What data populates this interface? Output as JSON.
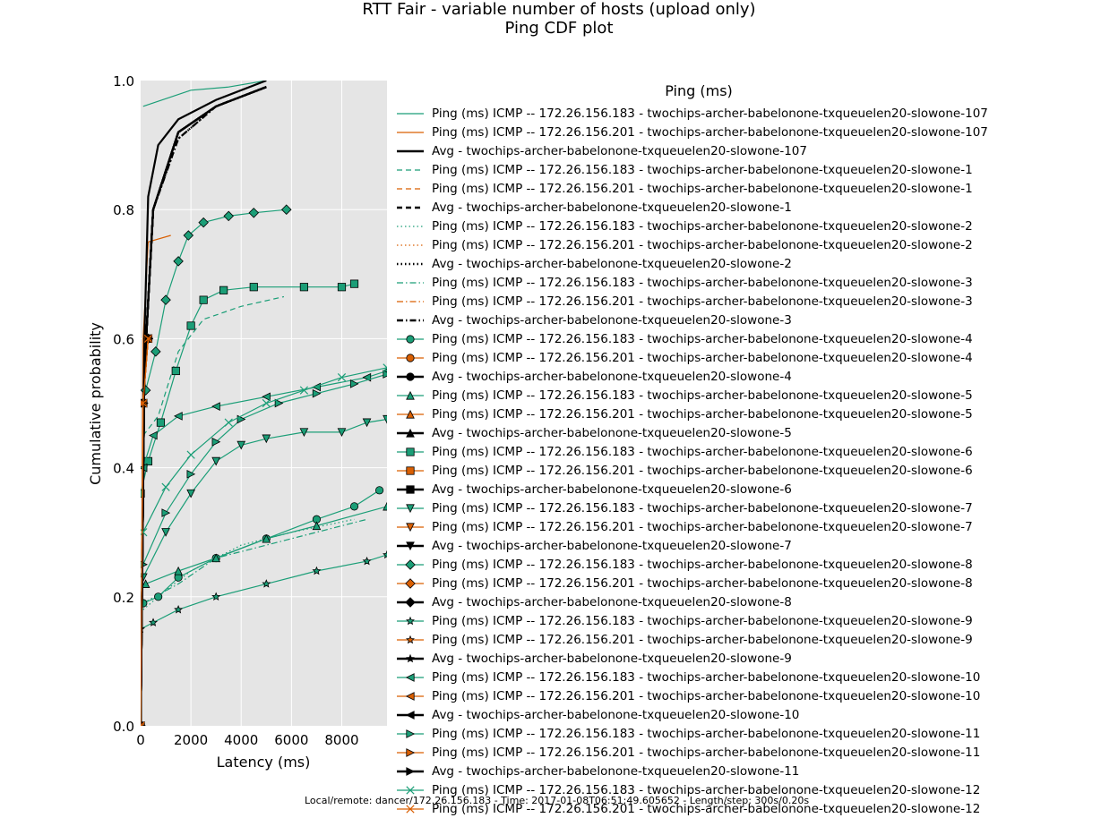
{
  "title": "RTT Fair - variable number of hosts (upload only)",
  "subtitle": "Ping CDF plot",
  "footer_text": "Local/remote: dancer/172.26.156.183 - Time: 2017-01-08T06:51:49.605652 - Length/step: 300s/0.20s",
  "colors": {
    "plot_bg": "#e5e5e5",
    "grid": "#ffffff",
    "series_183": "#1b9e77",
    "series_201": "#d95f02",
    "series_avg": "#000000"
  },
  "chart_data": {
    "type": "line",
    "title": "RTT Fair - variable number of hosts (upload only)",
    "subtitle": "Ping CDF plot",
    "xlabel": "Latency (ms)",
    "ylabel": "Cumulative probability",
    "xlim": [
      0,
      9800
    ],
    "ylim": [
      0,
      1.0
    ],
    "xticks": [
      0,
      2000,
      4000,
      6000,
      8000
    ],
    "xtick_labels": [
      "0",
      "2000",
      "4000",
      "6000",
      "8000"
    ],
    "yticks": [
      0.0,
      0.2,
      0.4,
      0.6,
      0.8,
      1.0
    ],
    "ytick_labels": [
      "0.0",
      "0.2",
      "0.4",
      "0.6",
      "0.8",
      "1.0"
    ],
    "grid": true,
    "legend_title": "Ping (ms)",
    "legend_position": "right",
    "series": [
      {
        "name": "Ping (ms) ICMP -- 172.26.156.183 - twochips-archer-babelonone-txqueuelen20-slowone-107",
        "color": "#1b9e77",
        "style": "solid",
        "marker": "none",
        "x": [
          100,
          2000,
          3500,
          5000
        ],
        "y": [
          0.96,
          0.985,
          0.99,
          1.0
        ]
      },
      {
        "name": "Ping (ms) ICMP -- 172.26.156.201 - twochips-archer-babelonone-txqueuelen20-slowone-107",
        "color": "#d95f02",
        "style": "solid",
        "marker": "none",
        "x": [
          0,
          100,
          300,
          1200
        ],
        "y": [
          0.0,
          0.6,
          0.75,
          0.76
        ]
      },
      {
        "name": "Avg - twochips-archer-babelonone-txqueuelen20-slowone-107",
        "color": "#000000",
        "style": "solid",
        "marker": "none",
        "x": [
          0,
          150,
          300,
          700,
          1500,
          3000,
          5000
        ],
        "y": [
          0.0,
          0.6,
          0.82,
          0.9,
          0.94,
          0.97,
          1.0
        ]
      },
      {
        "name": "Ping (ms) ICMP -- 172.26.156.183 - twochips-archer-babelonone-txqueuelen20-slowone-1",
        "color": "#1b9e77",
        "style": "dashed",
        "marker": "none",
        "x": [
          100,
          700,
          1500,
          2500,
          4000,
          5700
        ],
        "y": [
          0.45,
          0.48,
          0.58,
          0.63,
          0.65,
          0.665
        ]
      },
      {
        "name": "Ping (ms) ICMP -- 172.26.156.201 - twochips-archer-babelonone-txqueuelen20-slowone-1",
        "color": "#d95f02",
        "style": "dashed",
        "marker": "none",
        "x": [
          0,
          100,
          300
        ],
        "y": [
          0.0,
          0.5,
          0.6
        ]
      },
      {
        "name": "Avg - twochips-archer-babelonone-txqueuelen20-slowone-1",
        "color": "#000000",
        "style": "dashed",
        "marker": "none",
        "x": [
          0,
          150,
          500,
          1500,
          3000,
          5000
        ],
        "y": [
          0.0,
          0.55,
          0.8,
          0.92,
          0.96,
          0.99
        ]
      },
      {
        "name": "Ping (ms) ICMP -- 172.26.156.183 - twochips-archer-babelonone-txqueuelen20-slowone-2",
        "color": "#1b9e77",
        "style": "dotted",
        "marker": "none",
        "x": [
          100,
          1000,
          2000,
          4000,
          6000,
          8500
        ],
        "y": [
          0.18,
          0.21,
          0.24,
          0.28,
          0.3,
          0.32
        ]
      },
      {
        "name": "Ping (ms) ICMP -- 172.26.156.201 - twochips-archer-babelonone-txqueuelen20-slowone-2",
        "color": "#d95f02",
        "style": "dotted",
        "marker": "none",
        "x": [
          0,
          100,
          300
        ],
        "y": [
          0.0,
          0.5,
          0.6
        ]
      },
      {
        "name": "Avg - twochips-archer-babelonone-txqueuelen20-slowone-2",
        "color": "#000000",
        "style": "dotted",
        "marker": "none",
        "x": [
          0,
          150,
          500,
          1500,
          3000,
          5000
        ],
        "y": [
          0.0,
          0.55,
          0.8,
          0.91,
          0.96,
          0.99
        ]
      },
      {
        "name": "Ping (ms) ICMP -- 172.26.156.183 - twochips-archer-babelonone-txqueuelen20-slowone-3",
        "color": "#1b9e77",
        "style": "dashdot",
        "marker": "none",
        "x": [
          100,
          1500,
          3000,
          5000,
          7000,
          9000
        ],
        "y": [
          0.19,
          0.22,
          0.26,
          0.28,
          0.3,
          0.32
        ]
      },
      {
        "name": "Ping (ms) ICMP -- 172.26.156.201 - twochips-archer-babelonone-txqueuelen20-slowone-3",
        "color": "#d95f02",
        "style": "dashdot",
        "marker": "none",
        "x": [
          0,
          100,
          300
        ],
        "y": [
          0.0,
          0.5,
          0.6
        ]
      },
      {
        "name": "Avg - twochips-archer-babelonone-txqueuelen20-slowone-3",
        "color": "#000000",
        "style": "dashdot",
        "marker": "none",
        "x": [
          0,
          150,
          500,
          1500,
          3000,
          5000
        ],
        "y": [
          0.0,
          0.55,
          0.8,
          0.91,
          0.96,
          0.99
        ]
      },
      {
        "name": "Ping (ms) ICMP -- 172.26.156.183 - twochips-archer-babelonone-txqueuelen20-slowone-4",
        "color": "#1b9e77",
        "style": "solid",
        "marker": "circle",
        "x": [
          100,
          700,
          1500,
          3000,
          5000,
          7000,
          8500,
          9500
        ],
        "y": [
          0.19,
          0.2,
          0.23,
          0.26,
          0.29,
          0.32,
          0.34,
          0.365
        ]
      },
      {
        "name": "Ping (ms) ICMP -- 172.26.156.201 - twochips-archer-babelonone-txqueuelen20-slowone-4",
        "color": "#d95f02",
        "style": "solid",
        "marker": "circle",
        "x": [
          0,
          100,
          300
        ],
        "y": [
          0.0,
          0.5,
          0.6
        ]
      },
      {
        "name": "Avg - twochips-archer-babelonone-txqueuelen20-slowone-4",
        "color": "#000000",
        "style": "solid",
        "marker": "circle",
        "x": [
          0,
          150,
          500,
          1500,
          3000,
          5000
        ],
        "y": [
          0.0,
          0.55,
          0.8,
          0.92,
          0.96,
          0.99
        ]
      },
      {
        "name": "Ping (ms) ICMP -- 172.26.156.183 - twochips-archer-babelonone-txqueuelen20-slowone-5",
        "color": "#1b9e77",
        "style": "solid",
        "marker": "triangle-up",
        "x": [
          200,
          1500,
          3000,
          5000,
          7000,
          9800
        ],
        "y": [
          0.22,
          0.24,
          0.26,
          0.29,
          0.31,
          0.34
        ]
      },
      {
        "name": "Ping (ms) ICMP -- 172.26.156.201 - twochips-archer-babelonone-txqueuelen20-slowone-5",
        "color": "#d95f02",
        "style": "solid",
        "marker": "triangle-up",
        "x": [
          0,
          100,
          300
        ],
        "y": [
          0.0,
          0.5,
          0.6
        ]
      },
      {
        "name": "Avg - twochips-archer-babelonone-txqueuelen20-slowone-5",
        "color": "#000000",
        "style": "solid",
        "marker": "triangle-up",
        "x": [
          0,
          150,
          500,
          1500,
          3000,
          5000
        ],
        "y": [
          0.0,
          0.55,
          0.8,
          0.92,
          0.96,
          0.99
        ]
      },
      {
        "name": "Ping (ms) ICMP -- 172.26.156.183 - twochips-archer-babelonone-txqueuelen20-slowone-6",
        "color": "#1b9e77",
        "style": "solid",
        "marker": "square",
        "x": [
          0,
          300,
          800,
          1400,
          2000,
          2500,
          3300,
          4500,
          6500,
          8000,
          8500
        ],
        "y": [
          0.36,
          0.41,
          0.47,
          0.55,
          0.62,
          0.66,
          0.675,
          0.68,
          0.68,
          0.68,
          0.685
        ]
      },
      {
        "name": "Ping (ms) ICMP -- 172.26.156.201 - twochips-archer-babelonone-txqueuelen20-slowone-6",
        "color": "#d95f02",
        "style": "solid",
        "marker": "square",
        "x": [
          0,
          100,
          300
        ],
        "y": [
          0.0,
          0.5,
          0.6
        ]
      },
      {
        "name": "Avg - twochips-archer-babelonone-txqueuelen20-slowone-6",
        "color": "#000000",
        "style": "solid",
        "marker": "square",
        "x": [
          0,
          150,
          500,
          1500,
          3000,
          5000
        ],
        "y": [
          0.0,
          0.55,
          0.8,
          0.92,
          0.96,
          0.99
        ]
      },
      {
        "name": "Ping (ms) ICMP -- 172.26.156.183 - twochips-archer-babelonone-txqueuelen20-slowone-7",
        "color": "#1b9e77",
        "style": "solid",
        "marker": "triangle-down",
        "x": [
          100,
          1000,
          2000,
          3000,
          4000,
          5000,
          6500,
          8000,
          9000,
          9800
        ],
        "y": [
          0.23,
          0.3,
          0.36,
          0.41,
          0.435,
          0.445,
          0.455,
          0.455,
          0.47,
          0.475
        ]
      },
      {
        "name": "Ping (ms) ICMP -- 172.26.156.201 - twochips-archer-babelonone-txqueuelen20-slowone-7",
        "color": "#d95f02",
        "style": "solid",
        "marker": "triangle-down",
        "x": [
          0,
          100,
          300
        ],
        "y": [
          0.0,
          0.5,
          0.6
        ]
      },
      {
        "name": "Avg - twochips-archer-babelonone-txqueuelen20-slowone-7",
        "color": "#000000",
        "style": "solid",
        "marker": "triangle-down",
        "x": [
          0,
          150,
          500,
          1500,
          3000,
          5000
        ],
        "y": [
          0.0,
          0.55,
          0.8,
          0.92,
          0.96,
          0.99
        ]
      },
      {
        "name": "Ping (ms) ICMP -- 172.26.156.183 - twochips-archer-babelonone-txqueuelen20-slowone-8",
        "color": "#1b9e77",
        "style": "solid",
        "marker": "diamond",
        "x": [
          200,
          600,
          1000,
          1500,
          1900,
          2500,
          3500,
          4500,
          5800
        ],
        "y": [
          0.52,
          0.58,
          0.66,
          0.72,
          0.76,
          0.78,
          0.79,
          0.795,
          0.8
        ]
      },
      {
        "name": "Ping (ms) ICMP -- 172.26.156.201 - twochips-archer-babelonone-txqueuelen20-slowone-8",
        "color": "#d95f02",
        "style": "solid",
        "marker": "diamond",
        "x": [
          0,
          100,
          300
        ],
        "y": [
          0.0,
          0.5,
          0.6
        ]
      },
      {
        "name": "Avg - twochips-archer-babelonone-txqueuelen20-slowone-8",
        "color": "#000000",
        "style": "solid",
        "marker": "diamond",
        "x": [
          0,
          150,
          500,
          1500,
          3000,
          5000
        ],
        "y": [
          0.0,
          0.55,
          0.8,
          0.92,
          0.96,
          0.99
        ]
      },
      {
        "name": "Ping (ms) ICMP -- 172.26.156.183 - twochips-archer-babelonone-txqueuelen20-slowone-9",
        "color": "#1b9e77",
        "style": "solid",
        "marker": "star",
        "x": [
          0,
          500,
          1500,
          3000,
          5000,
          7000,
          9000,
          9800
        ],
        "y": [
          0.15,
          0.16,
          0.18,
          0.2,
          0.22,
          0.24,
          0.255,
          0.265
        ]
      },
      {
        "name": "Ping (ms) ICMP -- 172.26.156.201 - twochips-archer-babelonone-txqueuelen20-slowone-9",
        "color": "#d95f02",
        "style": "solid",
        "marker": "star",
        "x": [
          0,
          100,
          300
        ],
        "y": [
          0.0,
          0.5,
          0.6
        ]
      },
      {
        "name": "Avg - twochips-archer-babelonone-txqueuelen20-slowone-9",
        "color": "#000000",
        "style": "solid",
        "marker": "star",
        "x": [
          0,
          150,
          500,
          1500,
          3000,
          5000
        ],
        "y": [
          0.0,
          0.55,
          0.8,
          0.92,
          0.96,
          0.99
        ]
      },
      {
        "name": "Ping (ms) ICMP -- 172.26.156.183 - twochips-archer-babelonone-txqueuelen20-slowone-10",
        "color": "#1b9e77",
        "style": "solid",
        "marker": "triangle-left",
        "x": [
          100,
          500,
          1500,
          3000,
          5000,
          7000,
          9000,
          9800
        ],
        "y": [
          0.4,
          0.45,
          0.48,
          0.495,
          0.51,
          0.525,
          0.54,
          0.55
        ]
      },
      {
        "name": "Ping (ms) ICMP -- 172.26.156.201 - twochips-archer-babelonone-txqueuelen20-slowone-10",
        "color": "#d95f02",
        "style": "solid",
        "marker": "triangle-left",
        "x": [
          0,
          100,
          300
        ],
        "y": [
          0.0,
          0.5,
          0.6
        ]
      },
      {
        "name": "Avg - twochips-archer-babelonone-txqueuelen20-slowone-10",
        "color": "#000000",
        "style": "solid",
        "marker": "triangle-left",
        "x": [
          0,
          150,
          500,
          1500,
          3000,
          5000
        ],
        "y": [
          0.0,
          0.55,
          0.8,
          0.92,
          0.96,
          0.99
        ]
      },
      {
        "name": "Ping (ms) ICMP -- 172.26.156.183 - twochips-archer-babelonone-txqueuelen20-slowone-11",
        "color": "#1b9e77",
        "style": "solid",
        "marker": "triangle-right",
        "x": [
          100,
          1000,
          2000,
          3000,
          4000,
          5500,
          7000,
          8500,
          9800
        ],
        "y": [
          0.25,
          0.33,
          0.39,
          0.44,
          0.475,
          0.5,
          0.515,
          0.53,
          0.545
        ]
      },
      {
        "name": "Ping (ms) ICMP -- 172.26.156.201 - twochips-archer-babelonone-txqueuelen20-slowone-11",
        "color": "#d95f02",
        "style": "solid",
        "marker": "triangle-right",
        "x": [
          0,
          100,
          300
        ],
        "y": [
          0.0,
          0.5,
          0.6
        ]
      },
      {
        "name": "Avg - twochips-archer-babelonone-txqueuelen20-slowone-11",
        "color": "#000000",
        "style": "solid",
        "marker": "triangle-right",
        "x": [
          0,
          150,
          500,
          1500,
          3000,
          5000
        ],
        "y": [
          0.0,
          0.55,
          0.8,
          0.92,
          0.96,
          0.99
        ]
      },
      {
        "name": "Ping (ms) ICMP -- 172.26.156.183 - twochips-archer-babelonone-txqueuelen20-slowone-12",
        "color": "#1b9e77",
        "style": "solid",
        "marker": "x",
        "x": [
          100,
          1000,
          2000,
          3500,
          5000,
          6500,
          8000,
          9800
        ],
        "y": [
          0.3,
          0.37,
          0.42,
          0.47,
          0.5,
          0.52,
          0.54,
          0.555
        ]
      },
      {
        "name": "Ping (ms) ICMP -- 172.26.156.201 - twochips-archer-babelonone-txqueuelen20-slowone-12",
        "color": "#d95f02",
        "style": "solid",
        "marker": "x",
        "x": [
          0,
          100,
          300
        ],
        "y": [
          0.0,
          0.5,
          0.6
        ]
      }
    ]
  }
}
